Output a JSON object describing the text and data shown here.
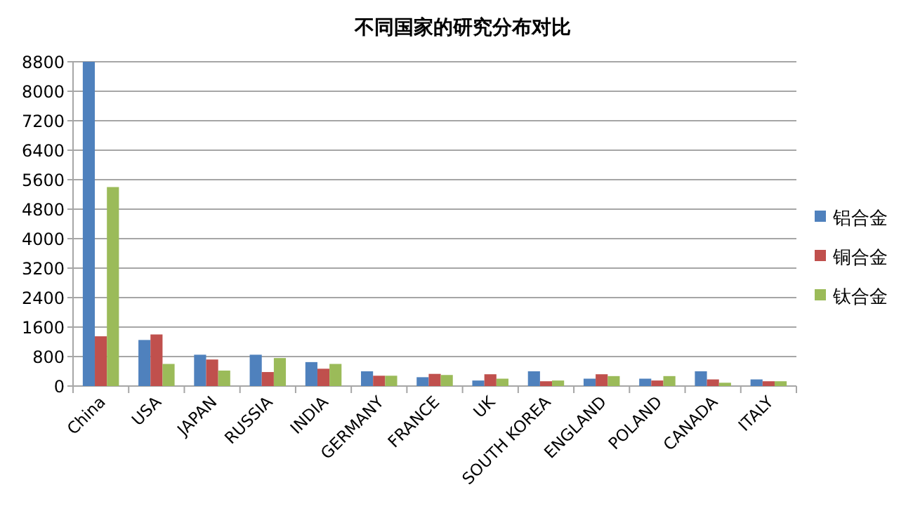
{
  "chart_data": {
    "type": "bar",
    "title": "不同国家的研究分布对比",
    "categories": [
      "China",
      "USA",
      "JAPAN",
      "RUSSIA",
      "INDIA",
      "GERMANY",
      "FRANCE",
      "UK",
      "SOUTH KOREA",
      "ENGLAND",
      "POLAND",
      "CANADA",
      "ITALY"
    ],
    "series": [
      {
        "name": "铝合金",
        "color": "#4f81bd",
        "values": [
          8800,
          1250,
          850,
          850,
          650,
          400,
          240,
          150,
          400,
          200,
          200,
          400,
          180
        ]
      },
      {
        "name": "铜合金",
        "color": "#c0504d",
        "values": [
          1350,
          1400,
          720,
          380,
          470,
          280,
          330,
          320,
          130,
          320,
          150,
          180,
          130
        ]
      },
      {
        "name": "钛合金",
        "color": "#9bbb59",
        "values": [
          5400,
          600,
          420,
          760,
          600,
          280,
          300,
          200,
          150,
          270,
          270,
          90,
          130
        ]
      }
    ],
    "ylim": [
      0,
      8800
    ],
    "yticks": [
      0,
      800,
      1600,
      2400,
      3200,
      4000,
      4800,
      5600,
      6400,
      7200,
      8000,
      8800
    ],
    "grid": "y",
    "legend": "right"
  }
}
